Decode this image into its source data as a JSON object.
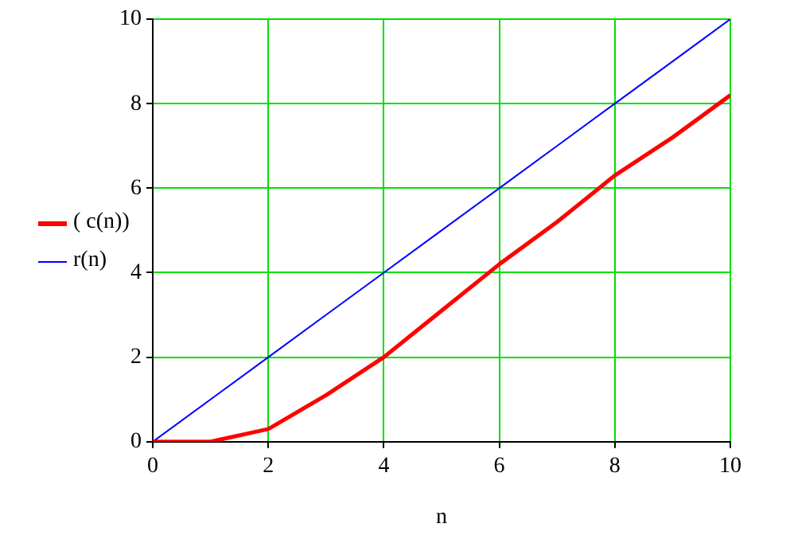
{
  "chart_data": {
    "type": "line",
    "xlabel": "n",
    "x": [
      0,
      1,
      2,
      3,
      4,
      5,
      6,
      7,
      8,
      9,
      10
    ],
    "series": [
      {
        "name": "( c(n))",
        "color": "#ff0000",
        "values": [
          0,
          0,
          0.3,
          1.1,
          2.0,
          3.1,
          4.2,
          5.2,
          6.3,
          7.2,
          8.2
        ]
      },
      {
        "name": "r(n)",
        "color": "#0000ff",
        "values": [
          0,
          1,
          2,
          3,
          4,
          5,
          6,
          7,
          8,
          9,
          10
        ]
      }
    ],
    "xlim": [
      0,
      10
    ],
    "ylim": [
      0,
      10
    ],
    "xticks": [
      0,
      2,
      4,
      6,
      8,
      10
    ],
    "yticks": [
      0,
      2,
      4,
      6,
      8,
      10
    ],
    "grid": true,
    "legend": "left",
    "marker": "none",
    "line_style": "solid"
  }
}
